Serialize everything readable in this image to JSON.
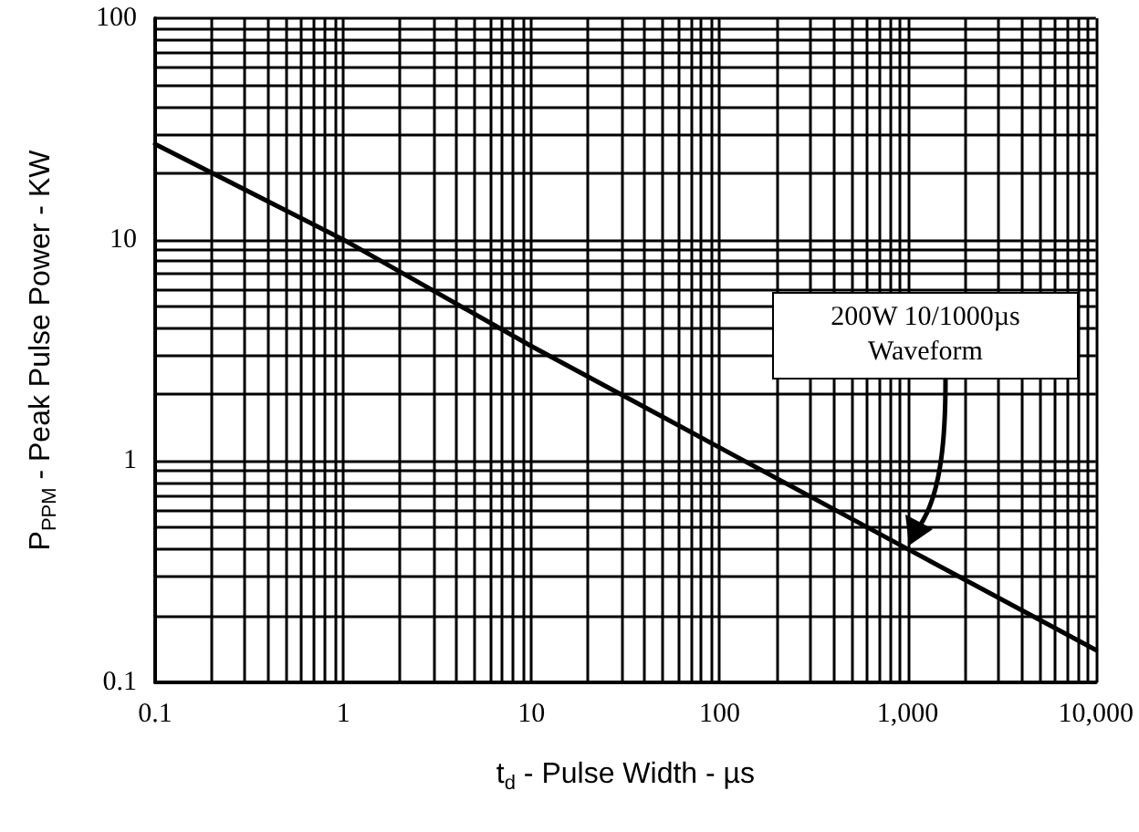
{
  "chart_data": {
    "type": "line",
    "xlabel": "t$_{d}$ - Pulse Width - µs",
    "ylabel": "P$_{PPM}$ - Peak Pulse Power - KW",
    "x": [
      0.1,
      1,
      10,
      100,
      1000,
      10000
    ],
    "series": [
      {
        "color": "#000000",
        "values": [
          27,
          10,
          3.3,
          1.15,
          0.4,
          0.14
        ]
      }
    ],
    "log": "xy",
    "xlim": [
      0.1,
      10000
    ],
    "ylim": [
      0.1,
      100
    ],
    "xticks": [
      0.1,
      1,
      10,
      100,
      {
        "value": 1000,
        "label": "1,000"
      },
      {
        "value": 10000,
        "label": "10,000"
      }
    ],
    "yticks": [
      0.1,
      1,
      10,
      100
    ],
    "grid": true,
    "marker": "none",
    "line_style": "solid",
    "annotations": [
      "200W 10/1000µs Waveform"
    ]
  }
}
